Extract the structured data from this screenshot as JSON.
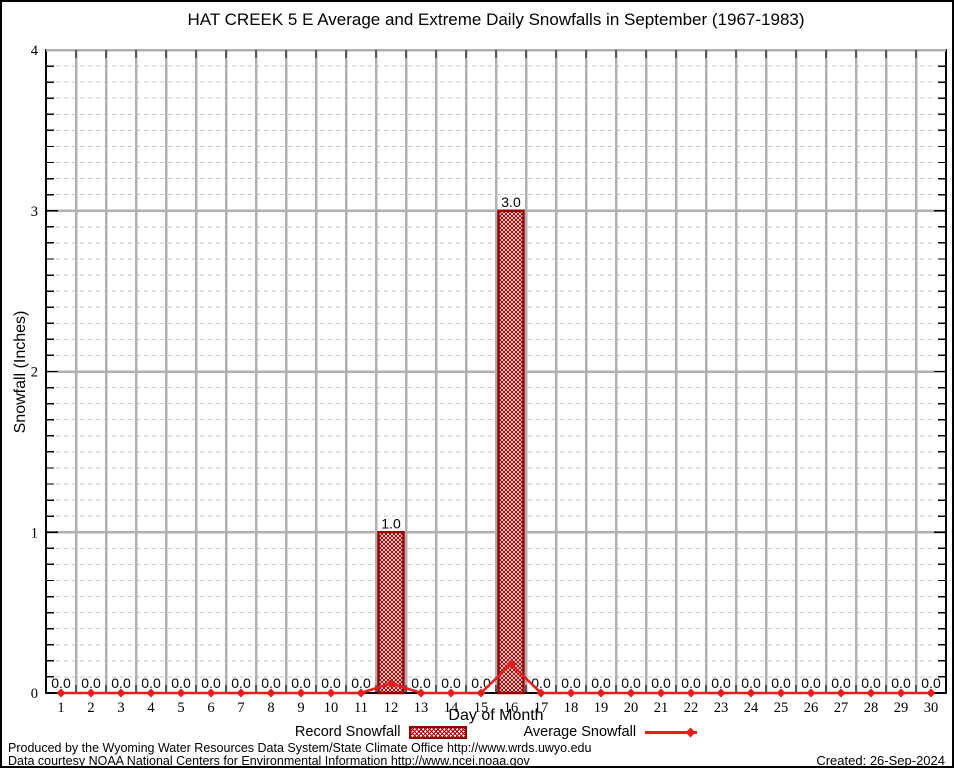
{
  "chart_data": {
    "type": "bar",
    "title": "HAT CREEK 5 E Average and Extreme Daily Snowfalls in September (1967-1983)",
    "xlabel": "Day of Month",
    "ylabel": "Snowfall (Inches)",
    "xlim": [
      0.5,
      30.5
    ],
    "ylim": [
      0,
      4
    ],
    "y_ticks": [
      0,
      1,
      2,
      3,
      4
    ],
    "y_minor_step": 0.1,
    "grid": "vertical major lines per day boundary, horizontal solid major lines, horizontal dashed minor lines",
    "legend_position": "bottom",
    "categories": [
      1,
      2,
      3,
      4,
      5,
      6,
      7,
      8,
      9,
      10,
      11,
      12,
      13,
      14,
      15,
      16,
      17,
      18,
      19,
      20,
      21,
      22,
      23,
      24,
      25,
      26,
      27,
      28,
      29,
      30
    ],
    "series": [
      {
        "name": "Record Snowfall",
        "type": "bar",
        "color": "#990000",
        "fill": "crosshatch",
        "values": [
          0,
          0,
          0,
          0,
          0,
          0,
          0,
          0,
          0,
          0,
          0,
          1.0,
          0,
          0,
          0,
          3.0,
          0,
          0,
          0,
          0,
          0,
          0,
          0,
          0,
          0,
          0,
          0,
          0,
          0,
          0
        ]
      },
      {
        "name": "Average Snowfall",
        "type": "line",
        "color": "#e81e1e",
        "marker": "diamond",
        "values": [
          0,
          0,
          0,
          0,
          0,
          0,
          0,
          0,
          0,
          0,
          0,
          0.06,
          0,
          0,
          0,
          0.18,
          0,
          0,
          0,
          0,
          0,
          0,
          0,
          0,
          0,
          0,
          0,
          0,
          0,
          0
        ]
      }
    ],
    "value_labels": [
      "0.0",
      "0.0",
      "0.0",
      "0.0",
      "0.0",
      "0.0",
      "0.0",
      "0.0",
      "0.0",
      "0.0",
      "0.0",
      "1.0",
      "0.0",
      "0.0",
      "0.0",
      "3.0",
      "0.0",
      "0.0",
      "0.0",
      "0.0",
      "0.0",
      "0.0",
      "0.0",
      "0.0",
      "0.0",
      "0.0",
      "0.0",
      "0.0",
      "0.0",
      "0.0"
    ]
  },
  "legend": {
    "items": [
      {
        "label": "Record Snowfall"
      },
      {
        "label": "Average Snowfall"
      }
    ]
  },
  "footer": {
    "line1": "Produced by the Wyoming Water Resources Data System/State Climate Office http://www.wrds.uwyo.edu",
    "line2": "Data courtesy NOAA National Centers for Environmental Information http://www.ncei.noaa.gov",
    "created": "Created: 26-Sep-2024"
  },
  "colors": {
    "bar_outline": "#990000",
    "line": "#e81e1e",
    "grid_major": "#b0b0b0",
    "grid_minor": "#c6c6c6",
    "axis": "#000000"
  }
}
